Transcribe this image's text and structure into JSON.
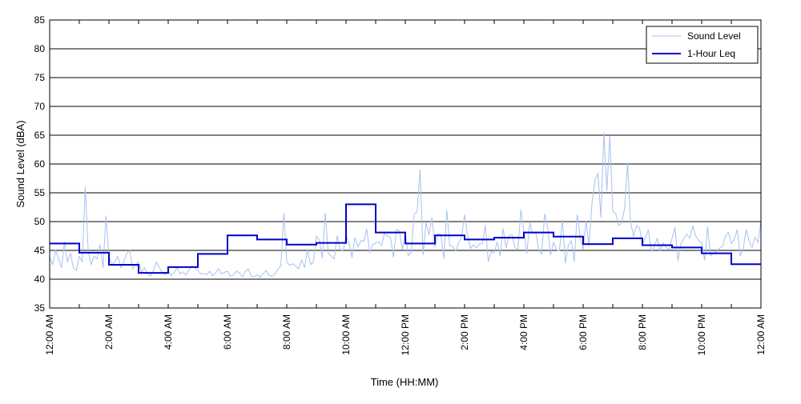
{
  "chart_data": {
    "type": "line",
    "xlabel": "Time (HH:MM)",
    "ylabel": "Sound Level (dBA)",
    "ylim": [
      35,
      85
    ],
    "yticks": [
      35,
      40,
      45,
      50,
      55,
      60,
      65,
      70,
      75,
      80,
      85
    ],
    "xlim_hours": [
      0,
      24
    ],
    "x_tick_labels": [
      "12:00 AM",
      "2:00 AM",
      "4:00 AM",
      "6:00 AM",
      "8:00 AM",
      "10:00 AM",
      "12:00 PM",
      "2:00 PM",
      "4:00 PM",
      "6:00 PM",
      "8:00 PM",
      "10:00 PM",
      "12:00 AM"
    ],
    "grid": "horizontal",
    "legend_position": "top-right",
    "colors": {
      "sound_level": "#a8c0f0",
      "leq": "#0000cc",
      "grid": "#000000",
      "axis": "#000000",
      "background": "#ffffff"
    },
    "series": [
      {
        "name": "Sound Level",
        "style": "thin-line",
        "x_hours_start": 0,
        "x_hours_step": 0.1,
        "values": [
          44,
          42.5,
          45,
          43.5,
          42,
          46.5,
          43,
          44.5,
          42,
          41.5,
          44,
          43,
          56,
          45,
          42.5,
          44,
          43.5,
          46,
          42,
          51,
          44,
          42.5,
          43,
          44,
          42,
          43,
          44.5,
          45,
          41.8,
          42.5,
          43,
          41.2,
          42,
          41,
          40.5,
          41.5,
          43,
          42,
          41.2,
          40.8,
          41.5,
          40.6,
          41.2,
          42,
          40.9,
          41.3,
          40.7,
          41.6,
          42.3,
          42,
          41.5,
          40.9,
          41,
          40.8,
          41.4,
          40.6,
          41.1,
          41.8,
          40.9,
          41.2,
          41.4,
          40.5,
          40.7,
          41.4,
          41.1,
          40.4,
          41.3,
          41.8,
          40.6,
          40.4,
          40.8,
          40.3,
          40.9,
          41.5,
          40.7,
          40.5,
          40.9,
          41.7,
          42.3,
          51.5,
          43,
          42.4,
          42.7,
          42.3,
          41.8,
          43.4,
          42,
          45.2,
          42.5,
          43,
          47.5,
          46.8,
          43.7,
          51.5,
          44.5,
          44,
          43.5,
          47.5,
          45.2,
          44.8,
          47.6,
          46.3,
          43.8,
          47.2,
          45.6,
          46.7,
          46.6,
          48.7,
          44.6,
          46,
          46.3,
          46.5,
          45.8,
          48,
          47.5,
          47.2,
          43.8,
          48.6,
          48.4,
          45.1,
          48.2,
          44.1,
          44.6,
          51.3,
          51.7,
          59,
          44.2,
          49.8,
          47.7,
          50.7,
          45.6,
          47.9,
          47.8,
          43.6,
          52,
          45.8,
          45.7,
          44.8,
          46.3,
          47.3,
          51.2,
          47.6,
          45.3,
          46,
          45.4,
          46.1,
          46.2,
          49.3,
          43.1,
          44.8,
          44.6,
          46.5,
          44.1,
          48.8,
          45.4,
          47.6,
          47.7,
          45.5,
          45.2,
          52,
          48.4,
          44.5,
          49.8,
          47.9,
          48.2,
          45.2,
          44.3,
          51.3,
          49.2,
          44.2,
          46.4,
          45.1,
          44.9,
          50.3,
          42.8,
          45.8,
          46.7,
          43.1,
          51.2,
          47.3,
          45.1,
          50.1,
          45.8,
          53.3,
          57.2,
          58.4,
          50.7,
          65.4,
          55.4,
          64.8,
          51.8,
          51.4,
          49.3,
          49.7,
          52.4,
          60.3,
          50,
          47.4,
          49.3,
          48.9,
          46,
          47.2,
          48.6,
          44.8,
          45.7,
          47.1,
          44.9,
          46.3,
          45.5,
          45.2,
          47.1,
          49,
          43.2,
          46.1,
          47.1,
          47.8,
          47.1,
          49.3,
          47.5,
          46.7,
          46.3,
          43.3,
          49.1,
          44.1,
          44.5,
          44.8,
          45.4,
          45.7,
          47.4,
          48.2,
          46.2,
          46.9,
          48.6,
          44,
          45.2,
          48.6,
          46.7,
          45.5,
          47.3,
          46.4,
          50.1,
          45.1,
          46.8,
          47.7,
          45.8,
          44.8,
          47.7,
          48.7,
          44.2,
          46.4,
          45.4,
          46.5,
          48.1,
          44.6,
          45.5,
          51.6,
          47.9,
          49.6,
          48.3,
          46.1,
          50,
          51.5,
          43.1,
          46.5,
          49.7,
          54.6,
          45.3,
          48.5,
          47.4,
          45.3,
          46.2,
          51.1,
          47.1,
          46.6,
          47,
          48.4,
          50.2,
          45.2,
          46.2,
          47.6,
          45.5,
          46.3,
          46.9,
          48.5,
          55.3,
          47.6,
          45.6,
          44.1,
          48.7,
          48.3,
          45.8,
          46.2,
          48.2,
          44.5,
          46.1,
          44.3,
          45.8,
          48.1,
          48.5,
          44.3,
          50.6,
          45.6,
          44.2,
          49.9,
          46.6,
          49.1,
          45.2,
          45.8,
          45.2,
          44.7,
          48.6,
          44.3,
          44.6,
          45.2,
          44.5,
          44.9,
          44.3,
          46.8,
          42.8,
          49.7,
          46.5,
          42.9,
          43.1,
          45.8,
          46.4,
          48.7,
          43.7,
          45.2,
          46.4,
          46.1,
          45.6,
          45.4,
          43,
          44,
          55.8,
          44.2,
          46.2,
          43.6,
          44.1,
          46.5,
          44.2,
          42.8,
          43.8,
          43.6,
          43.4,
          55.6,
          45,
          42.1,
          45.2,
          45,
          43.9,
          46.5,
          46,
          42.9,
          45.5,
          42.6,
          44.2,
          45.3,
          41.7,
          43.6,
          41.5,
          44.3,
          42.6,
          41.9,
          45.8,
          44.3,
          43,
          43,
          43.7,
          43.4,
          41.9,
          43,
          41.9,
          40.8,
          42.1,
          41.9,
          43.8,
          41.5,
          42.3,
          41.4,
          43.6,
          42.3,
          40.1,
          41.1,
          43.7,
          41.6,
          40.6,
          41.2,
          43,
          46.5
        ]
      },
      {
        "name": "1-Hour Leq",
        "style": "step",
        "hour_values": [
          46.2,
          44.6,
          42.5,
          41.1,
          42.1,
          44.4,
          47.6,
          46.9,
          46,
          46.3,
          53,
          48.1,
          46.2,
          47.6,
          46.9,
          47.2,
          48.1,
          47.4,
          46.1,
          47.1,
          45.9,
          45.5,
          44.5,
          42.6
        ]
      }
    ]
  }
}
